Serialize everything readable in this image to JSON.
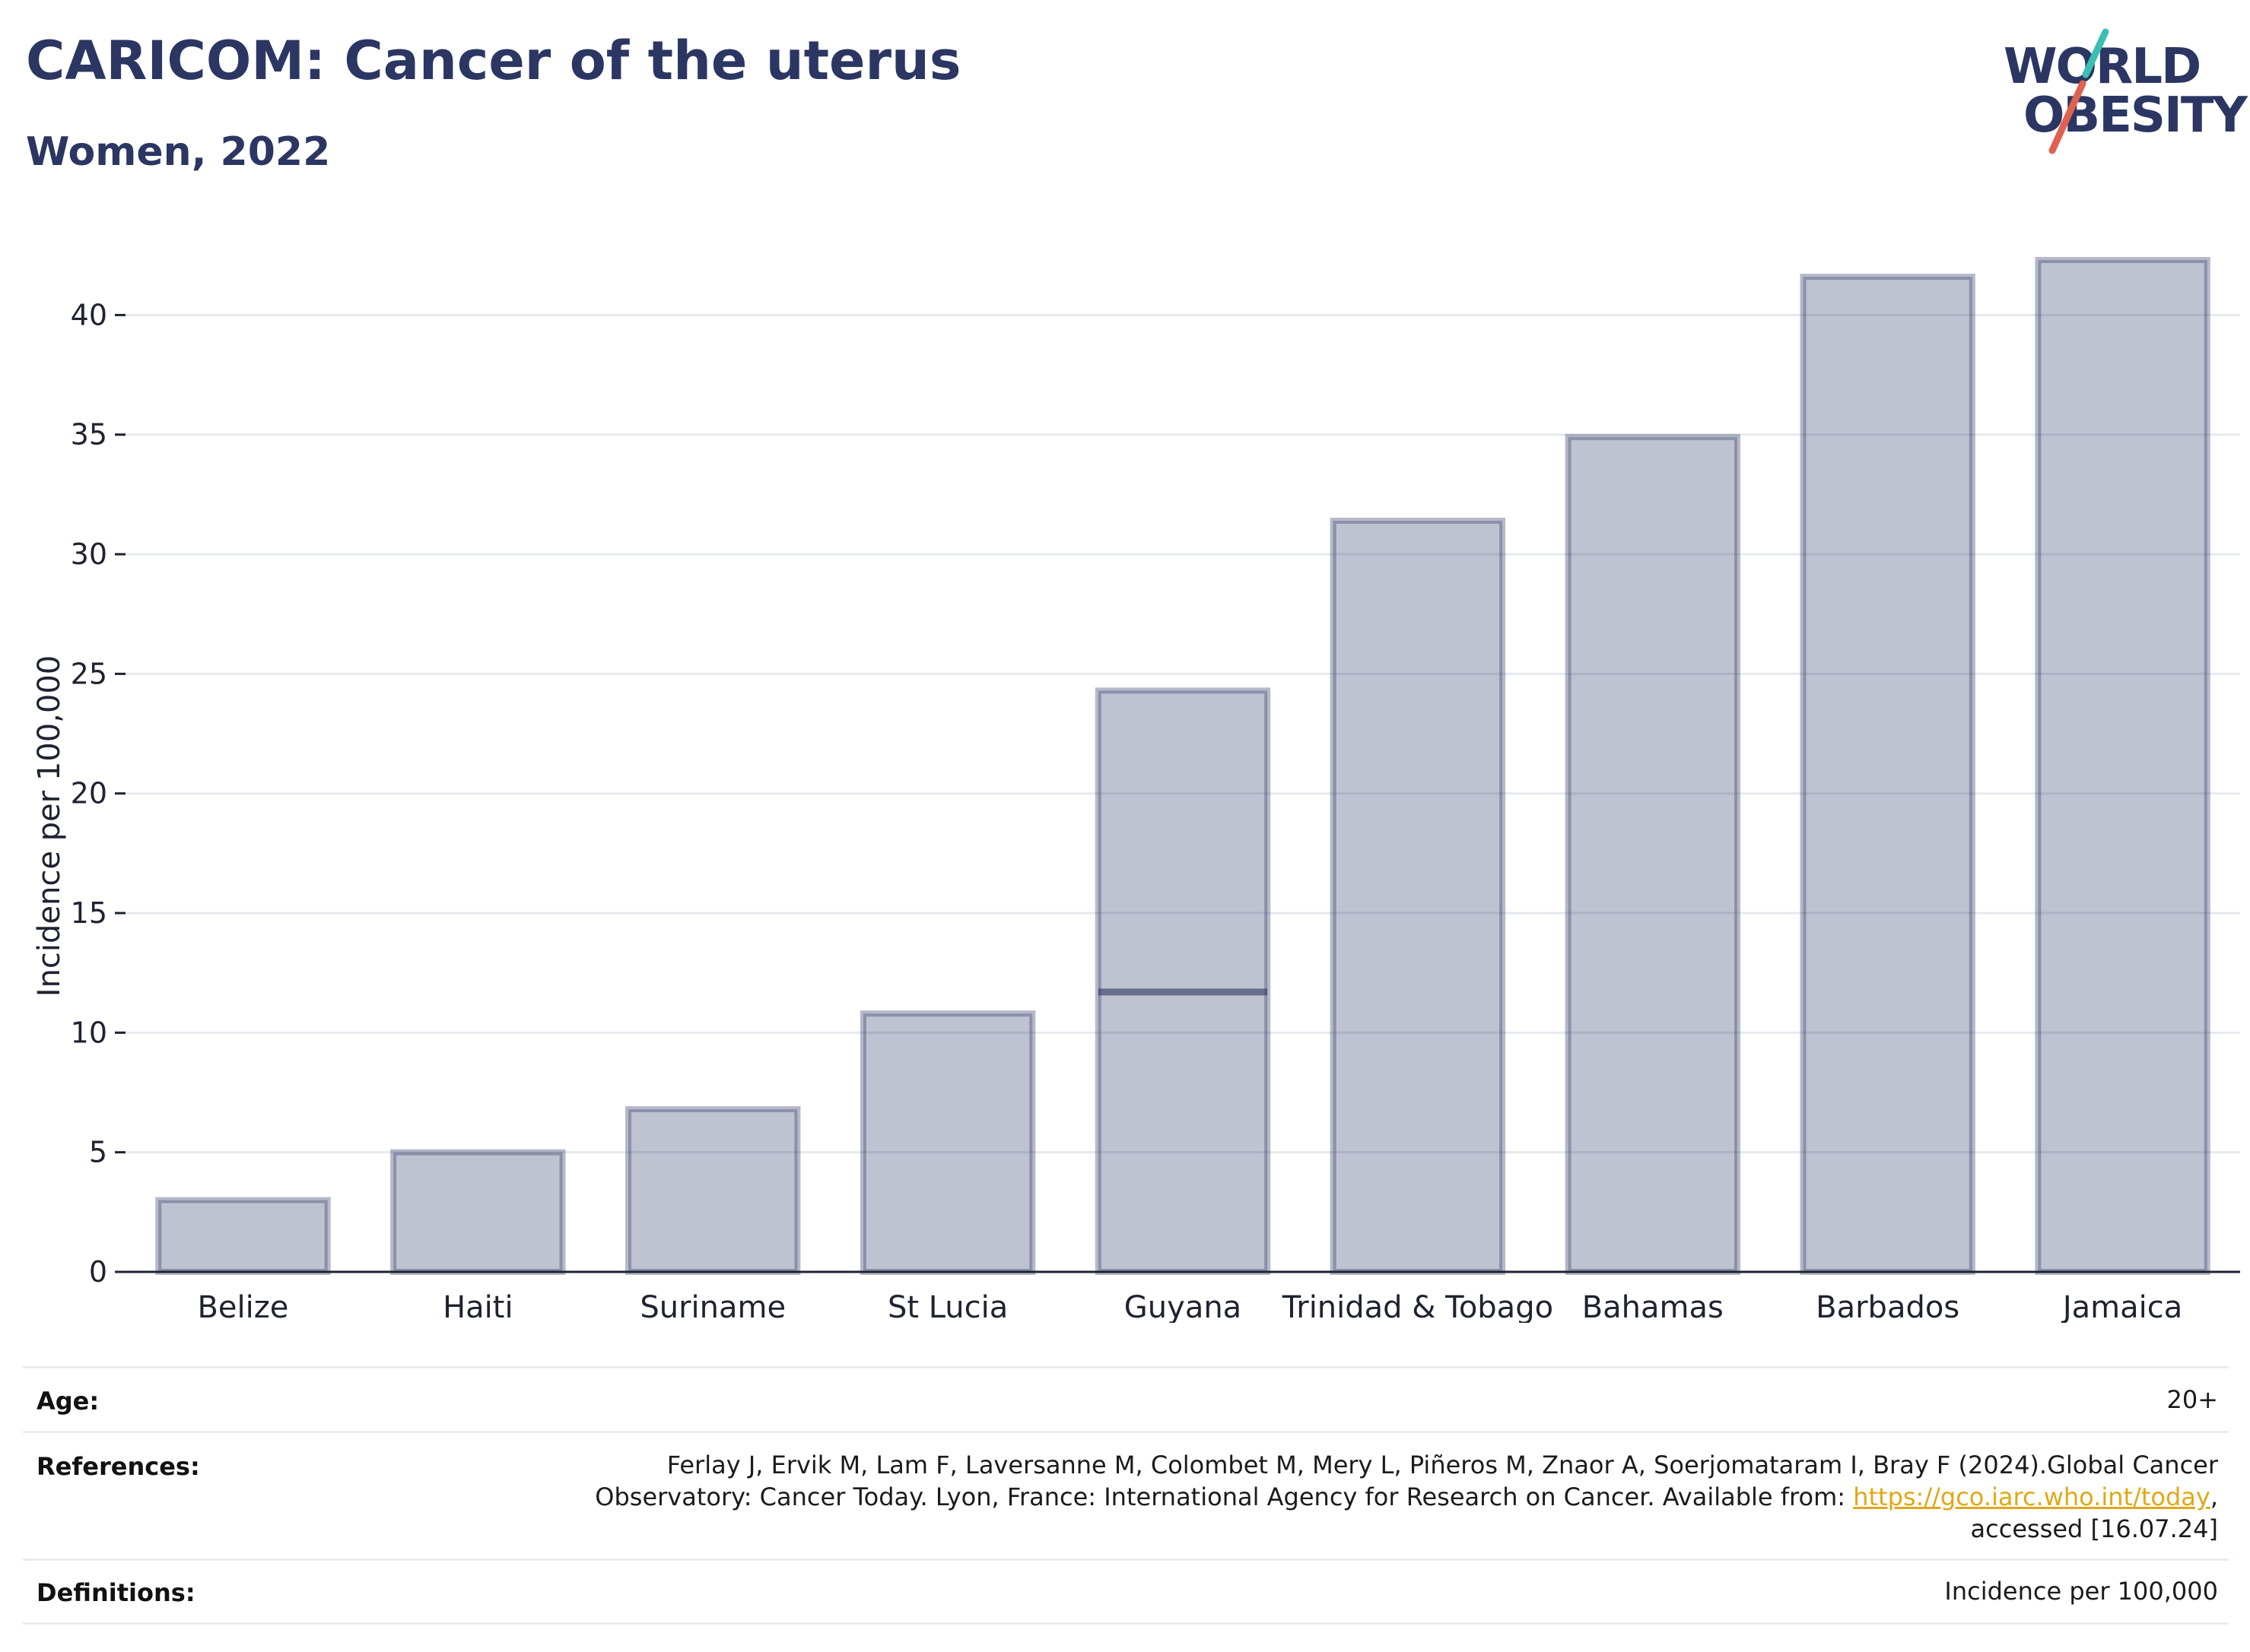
{
  "header": {
    "title": "CARICOM: Cancer of the uterus",
    "subtitle": "Women, 2022"
  },
  "logo": {
    "line1": "WORLD",
    "line2": "OBESITY",
    "accent_teal": "#3bbfb5",
    "accent_red": "#e0614f"
  },
  "chart_data": {
    "type": "bar",
    "categories": [
      "Belize",
      "Haiti",
      "Suriname",
      "St Lucia",
      "Guyana",
      "Trinidad & Tobago",
      "Bahamas",
      "Barbados",
      "Jamaica"
    ],
    "values": [
      3.0,
      5.0,
      6.8,
      10.8,
      24.3,
      31.4,
      34.9,
      41.6,
      42.3
    ],
    "reference_markers": [
      {
        "category": "Guyana",
        "value": 11.7
      }
    ],
    "title": "",
    "xlabel": "",
    "ylabel": "Incidence per 100,000",
    "ylim": [
      0,
      43
    ],
    "yticks": [
      0,
      5,
      10,
      15,
      20,
      25,
      30,
      35,
      40
    ],
    "grid": true,
    "bar_color": "#2b3663",
    "bar_fill_opacity": 0.3
  },
  "meta": {
    "age_label": "Age:",
    "age_value": "20+",
    "references_label": "References:",
    "references_line1": "Ferlay J, Ervik M, Lam F, Laversanne M, Colombet M, Mery L, Piñeros M, Znaor A, Soerjomataram I, Bray F (2024).Global Cancer",
    "references_line2_pre": "Observatory: Cancer Today. Lyon, France: International Agency for Research on Cancer. Available from: ",
    "references_link": "https://gco.iarc.who.int/today",
    "references_line2_post": ",",
    "references_line3": "accessed [16.07.24]",
    "definitions_label": "Definitions:",
    "definitions_value": "Incidence per 100,000"
  }
}
